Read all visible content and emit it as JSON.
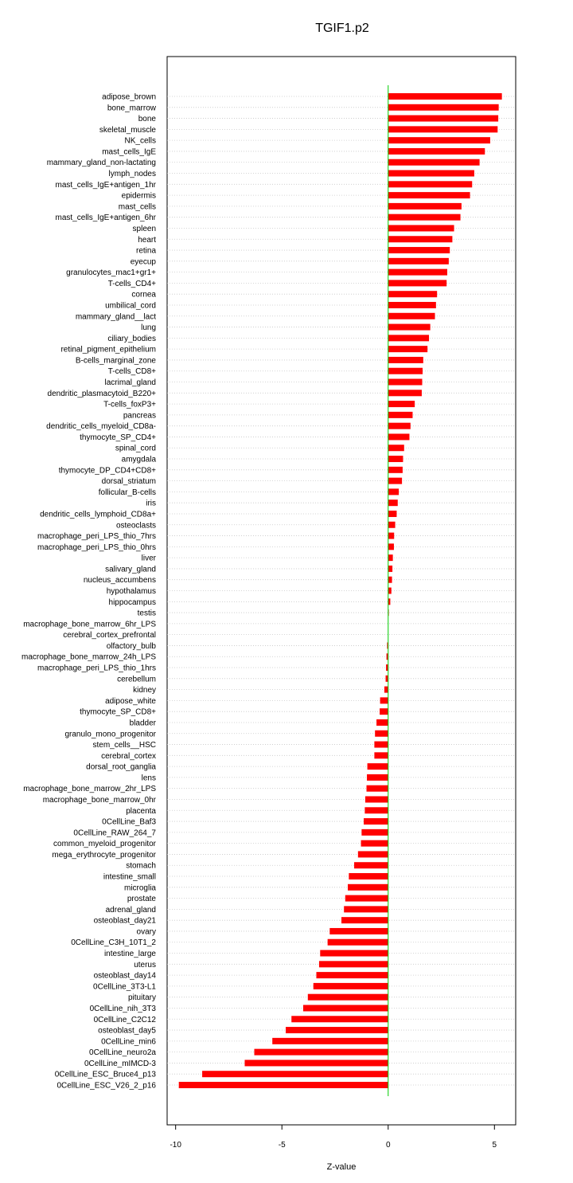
{
  "chart_data": {
    "type": "bar",
    "orientation": "horizontal",
    "title": "TGIF1.p2",
    "xlabel": "Z-value",
    "ylabel": "",
    "xlim": [
      -10.4,
      6.0
    ],
    "xticks": [
      -10,
      -5,
      0,
      5
    ],
    "grid": "horizontal-dotted",
    "bar_color": "#ff0000",
    "zero_line_color": "#00cc00",
    "categories": [
      "adipose_brown",
      "bone_marrow",
      "bone",
      "skeletal_muscle",
      "NK_cells",
      "mast_cells_IgE",
      "mammary_gland_non-lactating",
      "lymph_nodes",
      "mast_cells_IgE+antigen_1hr",
      "epidermis",
      "mast_cells",
      "mast_cells_IgE+antigen_6hr",
      "spleen",
      "heart",
      "retina",
      "eyecup",
      "granulocytes_mac1+gr1+",
      "T-cells_CD4+",
      "cornea",
      "umbilical_cord",
      "mammary_gland__lact",
      "lung",
      "ciliary_bodies",
      "retinal_pigment_epithelium",
      "B-cells_marginal_zone",
      "T-cells_CD8+",
      "lacrimal_gland",
      "dendritic_plasmacytoid_B220+",
      "T-cells_foxP3+",
      "pancreas",
      "dendritic_cells_myeloid_CD8a-",
      "thymocyte_SP_CD4+",
      "spinal_cord",
      "amygdala",
      "thymocyte_DP_CD4+CD8+",
      "dorsal_striatum",
      "follicular_B-cells",
      "iris",
      "dendritic_cells_lymphoid_CD8a+",
      "osteoclasts",
      "macrophage_peri_LPS_thio_7hrs",
      "macrophage_peri_LPS_thio_0hrs",
      "liver",
      "salivary_gland",
      "nucleus_accumbens",
      "hypothalamus",
      "hippocampus",
      "testis",
      "macrophage_bone_marrow_6hr_LPS",
      "cerebral_cortex_prefrontal",
      "olfactory_bulb",
      "macrophage_bone_marrow_24h_LPS",
      "macrophage_peri_LPS_thio_1hrs",
      "cerebellum",
      "kidney",
      "adipose_white",
      "thymocyte_SP_CD8+",
      "bladder",
      "granulo_mono_progenitor",
      "stem_cells__HSC",
      "cerebral_cortex",
      "dorsal_root_ganglia",
      "lens",
      "macrophage_bone_marrow_2hr_LPS",
      "macrophage_bone_marrow_0hr",
      "placenta",
      "0CellLine_Baf3",
      "0CellLine_RAW_264_7",
      "common_myeloid_progenitor",
      "mega_erythrocyte_progenitor",
      "stomach",
      "intestine_small",
      "microglia",
      "prostate",
      "adrenal_gland",
      "osteoblast_day21",
      "ovary",
      "0CellLine_C3H_10T1_2",
      "intestine_large",
      "uterus",
      "osteoblast_day14",
      "0CellLine_3T3-L1",
      "pituitary",
      "0CellLine_nih_3T3",
      "0CellLine_C2C12",
      "osteoblast_day5",
      "0CellLine_min6",
      "0CellLine_neuro2a",
      "0CellLine_mIMCD-3",
      "0CellLine_ESC_Bruce4_p13",
      "0CellLine_ESC_V26_2_p16"
    ],
    "values": [
      5.35,
      5.2,
      5.18,
      5.15,
      4.8,
      4.55,
      4.3,
      4.05,
      3.95,
      3.85,
      3.45,
      3.4,
      3.1,
      3.02,
      2.9,
      2.85,
      2.78,
      2.75,
      2.3,
      2.25,
      2.2,
      1.98,
      1.92,
      1.85,
      1.65,
      1.62,
      1.6,
      1.58,
      1.25,
      1.15,
      1.05,
      1.0,
      0.75,
      0.7,
      0.68,
      0.65,
      0.5,
      0.45,
      0.4,
      0.33,
      0.28,
      0.27,
      0.22,
      0.2,
      0.18,
      0.15,
      0.1,
      0.01,
      0.0,
      0.0,
      -0.05,
      -0.08,
      -0.1,
      -0.12,
      -0.18,
      -0.38,
      -0.4,
      -0.55,
      -0.62,
      -0.65,
      -0.65,
      -0.98,
      -1.0,
      -1.02,
      -1.08,
      -1.1,
      -1.15,
      -1.25,
      -1.28,
      -1.42,
      -1.6,
      -1.85,
      -1.9,
      -2.02,
      -2.08,
      -2.2,
      -2.75,
      -2.85,
      -3.2,
      -3.25,
      -3.38,
      -3.52,
      -3.78,
      -4.0,
      -4.55,
      -4.82,
      -5.45,
      -6.3,
      -6.75,
      -8.75,
      -9.85
    ]
  }
}
